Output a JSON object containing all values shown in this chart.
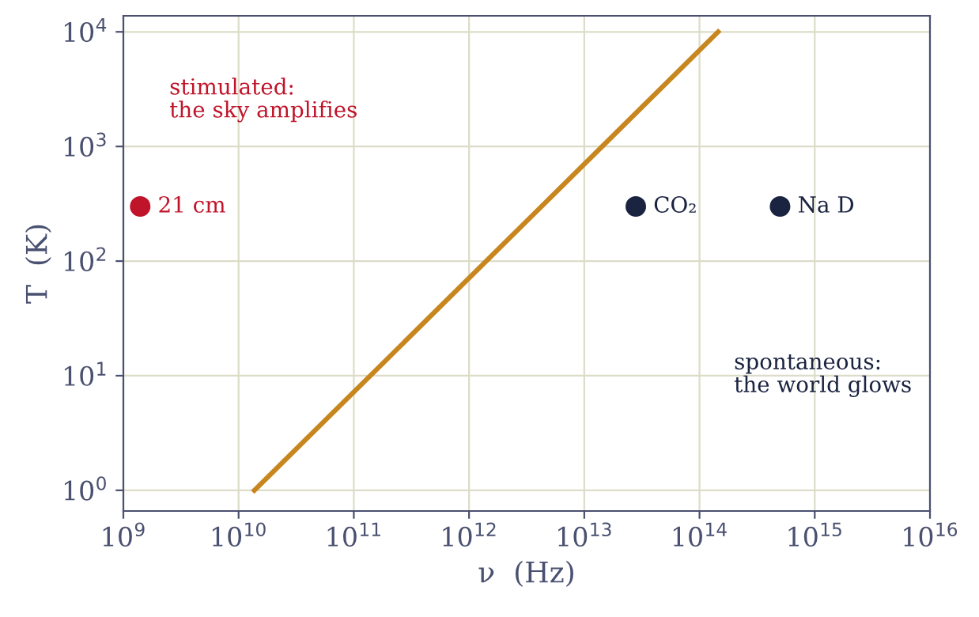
{
  "chart_data": {
    "type": "line",
    "xlabel": "ν  (Hz)",
    "ylabel": "T  (K)",
    "log": "xy",
    "grid": true,
    "xlim": [
      1000000000.0,
      1e+16
    ],
    "ylim": [
      0.66,
      13800
    ],
    "xticks": [
      {
        "value": 1000000000.0,
        "label": "10$^{9}$"
      },
      {
        "value": 10000000000.0,
        "label": "10$^{10}$"
      },
      {
        "value": 100000000000.0,
        "label": "10$^{11}$"
      },
      {
        "value": 1000000000000.0,
        "label": "10$^{12}$"
      },
      {
        "value": 10000000000000.0,
        "label": "10$^{13}$"
      },
      {
        "value": 100000000000000.0,
        "label": "10$^{14}$"
      },
      {
        "value": 1000000000000000.0,
        "label": "10$^{15}$"
      },
      {
        "value": 1e+16,
        "label": "10$^{16}$"
      }
    ],
    "yticks": [
      {
        "value": 1,
        "label": "10$^{0}$"
      },
      {
        "value": 10,
        "label": "10$^{1}$"
      },
      {
        "value": 100,
        "label": "10$^{2}$"
      },
      {
        "value": 1000,
        "label": "10$^{3}$"
      },
      {
        "value": 10000,
        "label": "10$^{4}$"
      }
    ],
    "series": [
      {
        "color": "#c8861f",
        "x": [
          13700000000.0,
          145000000000000.0
        ],
        "values": [
          1,
          10000
        ]
      },
      {
        "type": "scatter",
        "name": "21 cm",
        "color": "#c0142a",
        "x": [
          1400000000.0
        ],
        "values": [
          300
        ]
      },
      {
        "type": "scatter",
        "name": "CO₂",
        "color": "#1a2340",
        "x": [
          28000000000000.0
        ],
        "values": [
          300
        ]
      },
      {
        "type": "scatter",
        "name": "Na D",
        "color": "#1a2340",
        "x": [
          500000000000000.0
        ],
        "values": [
          300
        ]
      }
    ],
    "annotations": [
      "stimulated:\nthe sky amplifies",
      "spontaneous:\nthe world glows"
    ]
  }
}
